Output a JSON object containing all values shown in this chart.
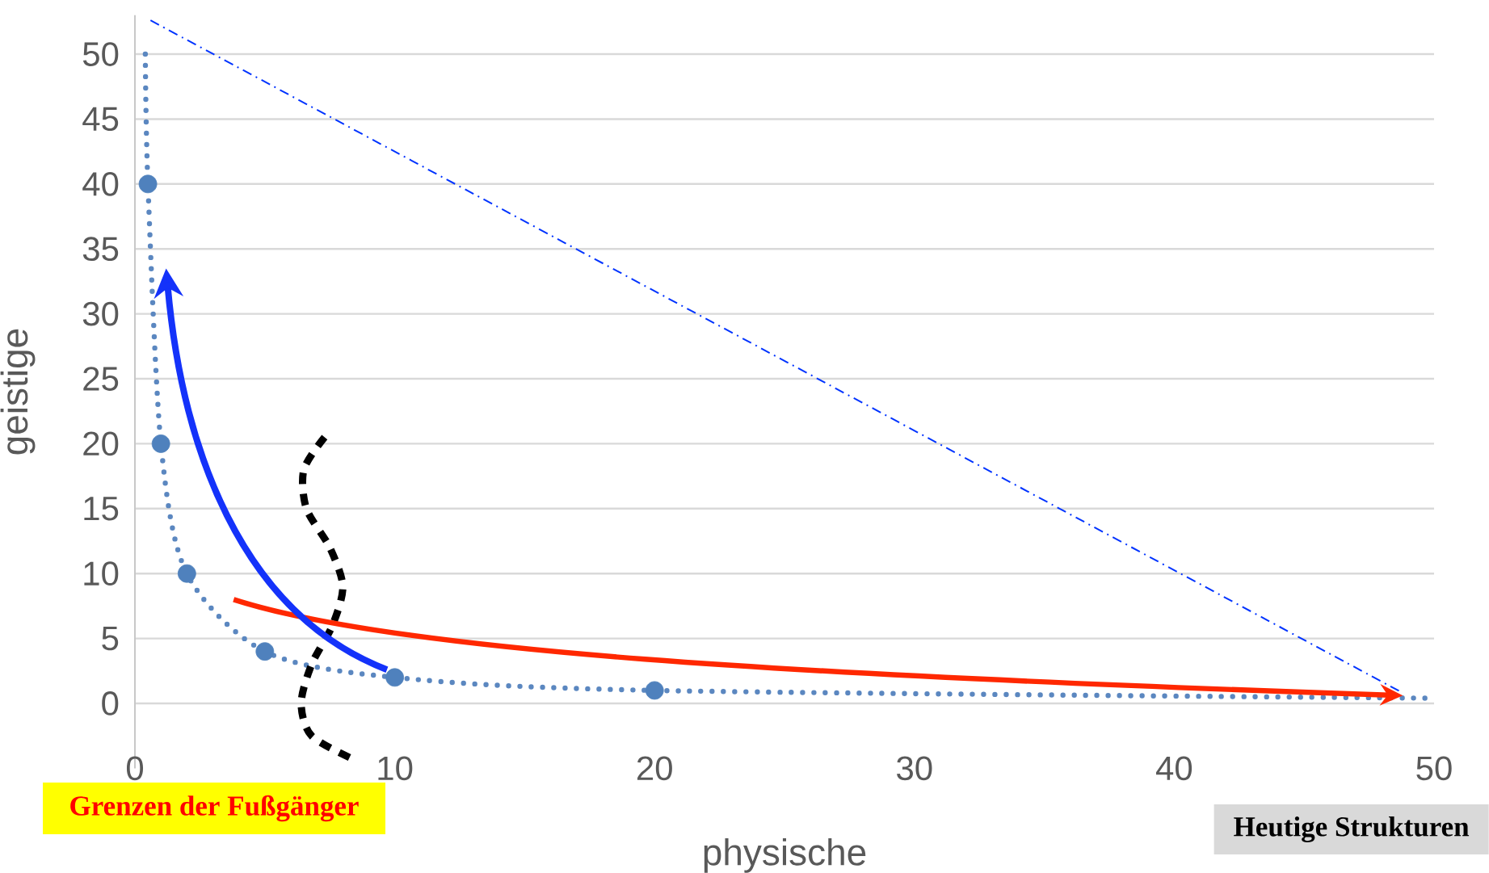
{
  "chart_data": {
    "type": "scatter",
    "xlabel": "physische",
    "ylabel": "geistige",
    "xlim": [
      0,
      50
    ],
    "ylim": [
      -5,
      53
    ],
    "xticks": [
      0,
      10,
      20,
      30,
      40,
      50
    ],
    "yticks": [
      0,
      5,
      10,
      15,
      20,
      25,
      30,
      35,
      40,
      45,
      50
    ],
    "grid": "y",
    "series": [
      {
        "type": "line",
        "color": "#5b87c0",
        "line_style": "dotted",
        "marker": "none",
        "x": [
          0.4,
          0.5,
          1,
          2,
          5,
          10,
          20,
          50
        ],
        "values": [
          50,
          40,
          20,
          10,
          4,
          2,
          1,
          0.4
        ]
      },
      {
        "color": "#4f81bd",
        "marker": "circle",
        "x": [
          0.5,
          1,
          2,
          5,
          10,
          20
        ],
        "values": [
          40,
          20,
          10,
          4,
          2,
          1
        ]
      },
      {
        "type": "line",
        "color": "#0033ff",
        "line_style": "dashed",
        "marker": "none",
        "x": [
          0.6,
          48.8
        ],
        "values": [
          52.6,
          0.8
        ]
      },
      {
        "type": "line",
        "color": "#000000",
        "line_style": "dashed",
        "marker": "none",
        "x": [
          7.3,
          6.5,
          6.6,
          7.5,
          8,
          7.6,
          6.8,
          6.4,
          6.8,
          8.4
        ],
        "values": [
          20.5,
          18,
          15,
          12,
          9,
          6,
          3,
          0,
          -2.5,
          -4.3
        ]
      }
    ],
    "annotations": [
      "Grenzen der Fußgänger",
      "Heutige Strukturen"
    ]
  }
}
